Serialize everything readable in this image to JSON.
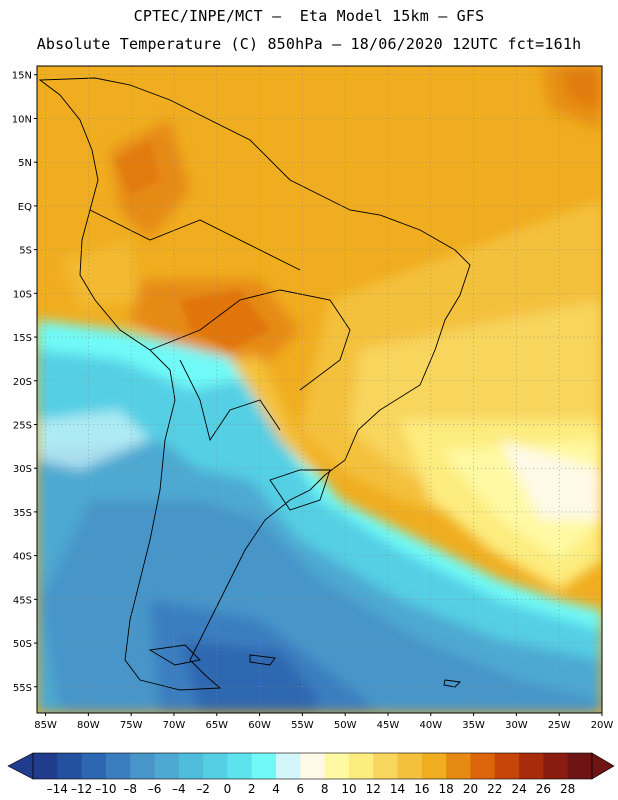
{
  "header": {
    "title_line1": "CPTEC/INPE/MCT –  Eta Model 15km – GFS",
    "title_line2": "Absolute Temperature (C) 850hPa – 18/06/2020 12UTC fct=161h"
  },
  "axes": {
    "lat_ticks": [
      "15N",
      "10N",
      "5N",
      "EQ",
      "5S",
      "10S",
      "15S",
      "20S",
      "25S",
      "30S",
      "35S",
      "40S",
      "45S",
      "50S",
      "55S"
    ],
    "lat_values": [
      15,
      10,
      5,
      0,
      -5,
      -10,
      -15,
      -20,
      -25,
      -30,
      -35,
      -40,
      -45,
      -50,
      -55
    ],
    "lon_ticks": [
      "85W",
      "80W",
      "75W",
      "70W",
      "65W",
      "60W",
      "55W",
      "50W",
      "45W",
      "40W",
      "35W",
      "30W",
      "25W",
      "20W"
    ],
    "lon_values": [
      -85,
      -80,
      -75,
      -70,
      -65,
      -60,
      -55,
      -50,
      -45,
      -40,
      -35,
      -30,
      -25,
      -20
    ],
    "lat_range": [
      -58,
      16
    ],
    "lon_range": [
      -86,
      -20
    ]
  },
  "colorbar": {
    "labels": [
      "-14",
      "-12",
      "-10",
      "-8",
      "-6",
      "-4",
      "-2",
      "0",
      "2",
      "4",
      "6",
      "8",
      "10",
      "12",
      "14",
      "16",
      "18",
      "20",
      "22",
      "24",
      "26",
      "28"
    ],
    "colors": [
      "#1f3d8c",
      "#24519f",
      "#2e67b1",
      "#3b7ec0",
      "#4795c9",
      "#4ea9d2",
      "#50bcdb",
      "#55cfe4",
      "#5ee3ee",
      "#6ffaf8",
      "#d3f6fb",
      "#fff9e8",
      "#fff9a3",
      "#fdec7e",
      "#f8d55d",
      "#f4c13e",
      "#f0ad1f",
      "#e68a14",
      "#dc640a",
      "#c84509",
      "#a82c0b",
      "#8a1c0f",
      "#6e1414"
    ]
  }
}
